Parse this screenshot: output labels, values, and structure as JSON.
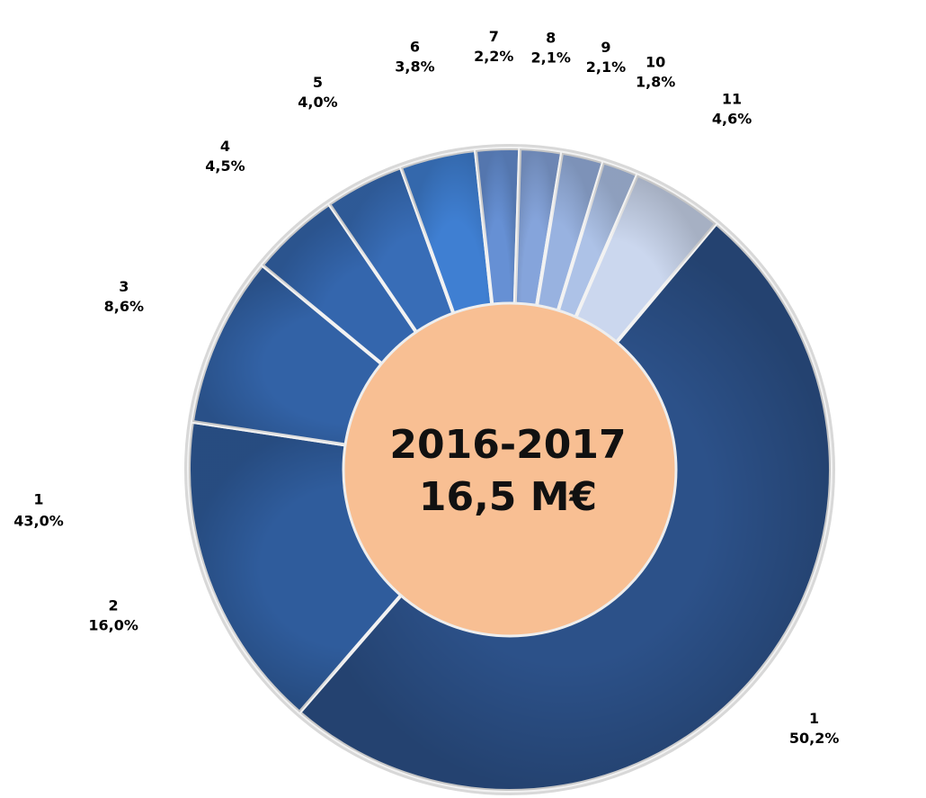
{
  "chart_data": {
    "type": "donut",
    "center_label": [
      "2016-2017",
      "16,5 M€"
    ],
    "categories": [
      "1",
      "2",
      "3",
      "4",
      "5",
      "6",
      "7",
      "8",
      "9",
      "10",
      "11"
    ],
    "values": [
      50.2,
      16.0,
      8.6,
      4.5,
      4.0,
      3.8,
      2.2,
      2.1,
      2.1,
      1.8,
      4.6
    ],
    "value_labels": [
      "50,2%",
      "16,0%",
      "8,6%",
      "4,5%",
      "4,0%",
      "3,8%",
      "2,2%",
      "2,1%",
      "2,1%",
      "1,8%",
      "4,6%"
    ],
    "colors": [
      "#2c5189",
      "#2f5c9c",
      "#3262a6",
      "#3466ad",
      "#386db7",
      "#3f7fd2",
      "#6690d4",
      "#85a4db",
      "#98b2e0",
      "#adc2e7",
      "#cbd7ee"
    ],
    "center_color": "#f8bf93",
    "annotations": [
      {
        "category": "1",
        "label": "43,0%"
      }
    ]
  }
}
